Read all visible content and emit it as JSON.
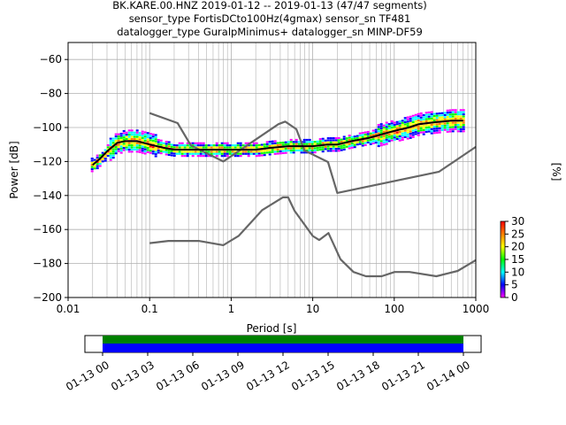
{
  "title": {
    "line1": "BK.KARE.00.HNZ   2019-01-12 -- 2019-01-13  (47/47 segments)",
    "line2": "sensor_type FortisDCto100Hz(4gmax) sensor_sn TF481",
    "line3": "datalogger_type GuralpMinimus+ datalogger_sn MINP-DF59"
  },
  "chart_data": [
    {
      "type": "heatmap",
      "xlabel": "Period [s]",
      "ylabel": "Power [dB]",
      "x_scale": "log",
      "xlim": [
        0.01,
        1000
      ],
      "ylim": [
        -200,
        -50
      ],
      "x_ticks": [
        0.01,
        0.1,
        1,
        10,
        100,
        1000
      ],
      "x_tick_labels": [
        "0.01",
        "0.1",
        "1",
        "10",
        "100",
        "1000"
      ],
      "y_ticks": [
        -200,
        -180,
        -160,
        -140,
        -120,
        -100,
        -80,
        -60
      ],
      "y_tick_labels": [
        "−200",
        "−180",
        "−160",
        "−140",
        "−120",
        "−100",
        "−80",
        "−60"
      ],
      "grid": true,
      "colorbar": {
        "label": "[%]",
        "range": [
          0,
          30
        ],
        "ticks": [
          0,
          5,
          10,
          15,
          20,
          25,
          30
        ],
        "tick_labels": [
          "0",
          "5",
          "10",
          "15",
          "20",
          "25",
          "30"
        ],
        "colors": [
          "#ffffff",
          "#ff00ff",
          "#0000ff",
          "#00ffff",
          "#00ff00",
          "#ffff00",
          "#ff8000",
          "#ff0000"
        ]
      },
      "series": [
        {
          "style": "mean-line",
          "color": "#000000",
          "x": [
            0.02,
            0.025,
            0.03,
            0.04,
            0.05,
            0.07,
            0.1,
            0.15,
            0.2,
            0.3,
            0.5,
            1,
            2,
            3,
            5,
            8,
            10,
            15,
            20,
            30,
            50,
            70,
            100,
            150,
            200,
            300,
            500,
            700
          ],
          "y": [
            -122,
            -118,
            -114,
            -109,
            -108,
            -108,
            -110,
            -112,
            -113,
            -113,
            -113,
            -113,
            -113,
            -112,
            -111,
            -111,
            -111,
            -110,
            -110,
            -108,
            -106,
            -104,
            -102,
            -100,
            -98,
            -97,
            -96,
            -96
          ]
        },
        {
          "style": "noise-model-high",
          "color": "#666666",
          "x": [
            0.1,
            0.22,
            0.32,
            0.8,
            3.8,
            4.6,
            6.3,
            7.9,
            15.4,
            20,
            354.8,
            1000
          ],
          "y": [
            -91.5,
            -97.4,
            -110.5,
            -120,
            -98,
            -96.5,
            -101,
            -113.5,
            -120.3,
            -138.5,
            -126,
            -111.4
          ]
        },
        {
          "style": "noise-model-low",
          "color": "#666666",
          "x": [
            0.1,
            0.17,
            0.4,
            0.8,
            1.24,
            2.4,
            4.3,
            5,
            6,
            10,
            12,
            15.6,
            21.9,
            31.6,
            45,
            70,
            101,
            154,
            328,
            600,
            1000
          ],
          "y": [
            -168,
            -166.7,
            -166.7,
            -169.2,
            -163.7,
            -148.6,
            -141.1,
            -141.1,
            -149,
            -163.8,
            -166.2,
            -162.1,
            -177.5,
            -185,
            -187.5,
            -187.5,
            -185,
            -185,
            -187.5,
            -184.4,
            -178
          ]
        }
      ],
      "data_availability_colors": {
        "upper": "#008000",
        "lower": "#0000ff"
      }
    },
    {
      "type": "timeline",
      "x_tick_labels": [
        "01-13 00",
        "01-13 03",
        "01-13 06",
        "01-13 09",
        "01-13 12",
        "01-13 15",
        "01-13 18",
        "01-13 21",
        "01-14 00"
      ]
    }
  ]
}
